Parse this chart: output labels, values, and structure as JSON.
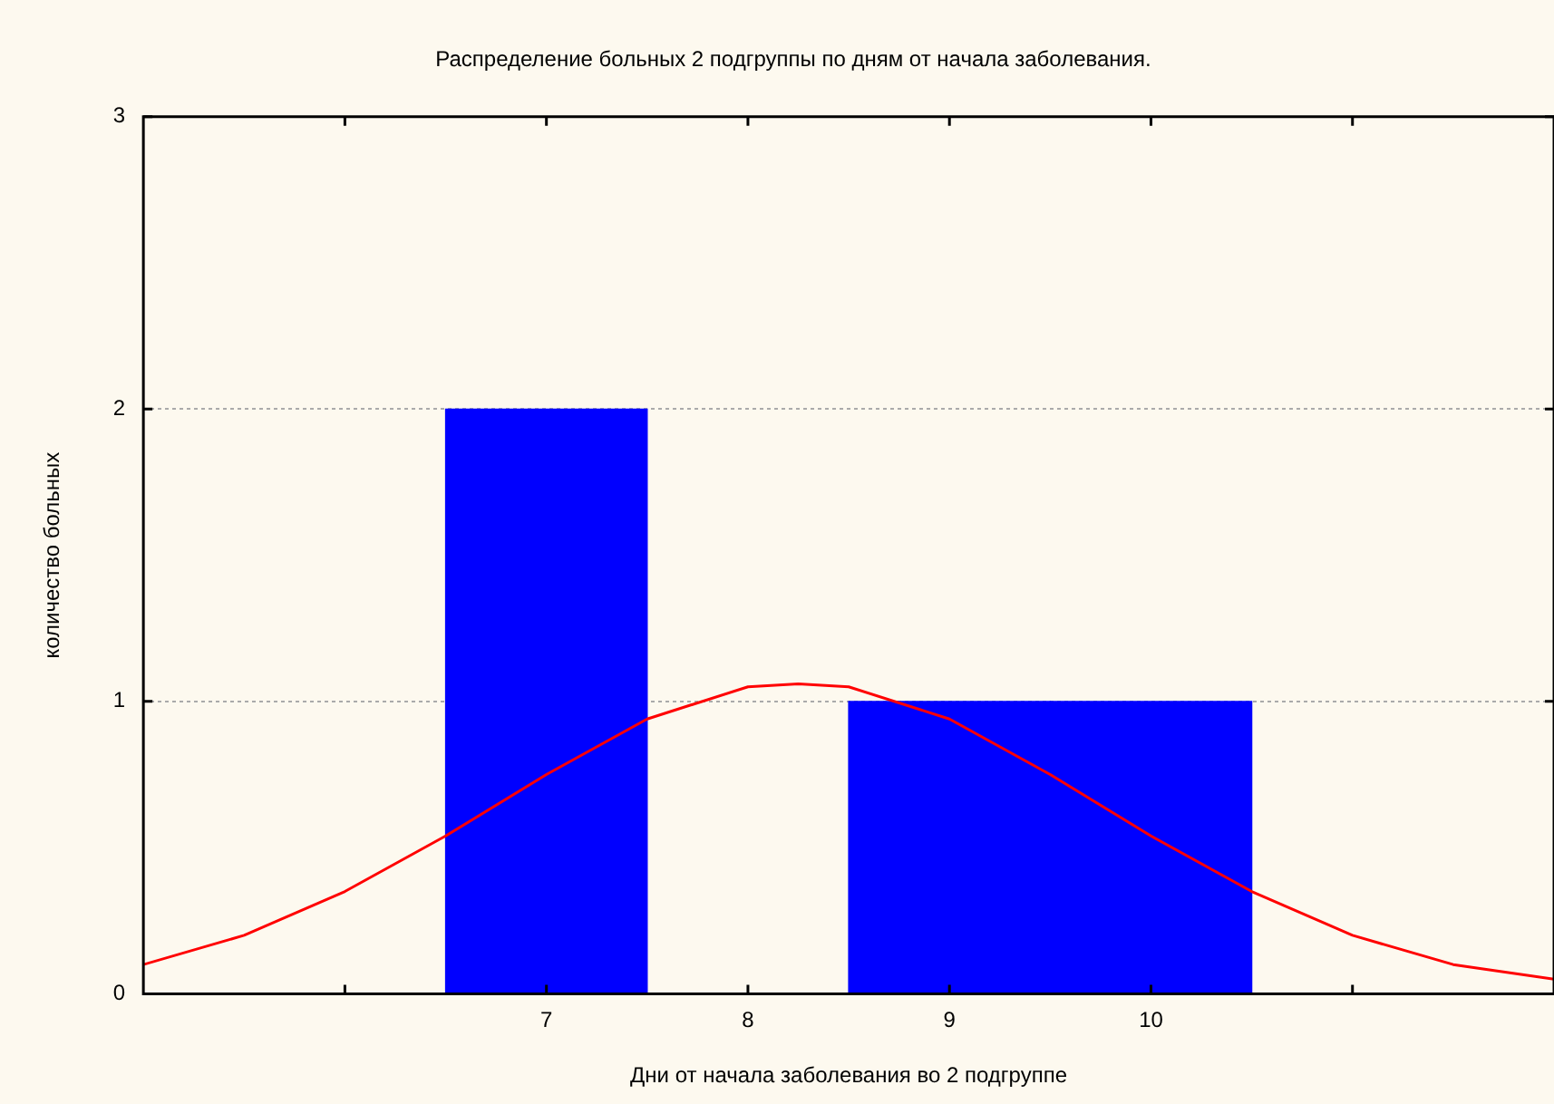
{
  "chart_data": {
    "type": "histogram",
    "title": "Распределение больных 2 подгруппы по дням от начала заболевания.",
    "xlabel": "Дни от начала заболевания во 2 подгруппе",
    "ylabel": "количество больных",
    "bins": [
      6.5,
      7.5,
      8.5,
      9.5,
      10.5
    ],
    "values": [
      2,
      0,
      1,
      1
    ],
    "color": "#0000ff",
    "series": [
      {
        "type": "line",
        "color": "#ff0000",
        "x": [
          5,
          5.5,
          6,
          6.5,
          7,
          7.5,
          8,
          8.25,
          8.5,
          9,
          9.5,
          10,
          10.5,
          11,
          11.5,
          12
        ],
        "values": [
          0.1,
          0.2,
          0.35,
          0.54,
          0.75,
          0.94,
          1.05,
          1.06,
          1.05,
          0.94,
          0.75,
          0.54,
          0.35,
          0.2,
          0.1,
          0.05
        ]
      }
    ],
    "xlim": [
      5,
      12
    ],
    "xticks": [
      {
        "value": 6,
        "label": null
      },
      7,
      8,
      9,
      10,
      {
        "value": 11,
        "label": null
      }
    ],
    "ylim": [
      0,
      3
    ],
    "yticks": [
      0,
      1,
      2,
      3
    ],
    "grid": "y",
    "legend": false
  }
}
